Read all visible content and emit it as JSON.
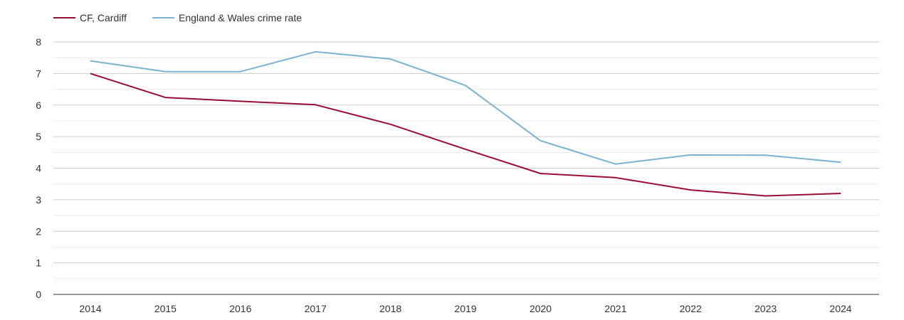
{
  "chart_data": {
    "type": "line",
    "title": "",
    "xlabel": "",
    "ylabel": "",
    "categories": [
      "2014",
      "2015",
      "2016",
      "2017",
      "2018",
      "2019",
      "2020",
      "2021",
      "2022",
      "2023",
      "2024"
    ],
    "ylim": [
      0,
      8
    ],
    "yticks": [
      "0",
      "1",
      "2",
      "3",
      "4",
      "5",
      "6",
      "7",
      "8"
    ],
    "grid": true,
    "legend_position": "top-left",
    "series": [
      {
        "name": "CF, Cardiff",
        "color": "#9b0e33",
        "values": [
          7.0,
          6.24,
          6.12,
          6.01,
          5.39,
          4.6,
          3.83,
          3.7,
          3.31,
          3.12,
          3.2
        ]
      },
      {
        "name": "England & Wales crime rate",
        "color": "#7ab3d1",
        "values": [
          7.4,
          7.06,
          7.06,
          7.69,
          7.46,
          6.62,
          4.87,
          4.13,
          4.42,
          4.41,
          4.19
        ]
      }
    ]
  }
}
